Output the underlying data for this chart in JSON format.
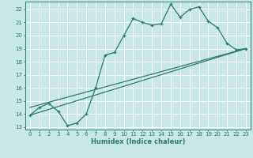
{
  "xlabel": "Humidex (Indice chaleur)",
  "bg_color": "#c8e8e8",
  "grid_color": "#ffffff",
  "line_color": "#2a7a6a",
  "xlim": [
    -0.5,
    23.5
  ],
  "ylim": [
    12.8,
    22.6
  ],
  "yticks": [
    13,
    14,
    15,
    16,
    17,
    18,
    19,
    20,
    21,
    22
  ],
  "xticks": [
    0,
    1,
    2,
    3,
    4,
    5,
    6,
    7,
    8,
    9,
    10,
    11,
    12,
    13,
    14,
    15,
    16,
    17,
    18,
    19,
    20,
    21,
    22,
    23
  ],
  "line1_x": [
    0,
    1,
    2,
    3,
    4,
    5,
    6,
    7,
    8,
    9,
    10,
    11,
    12,
    13,
    14,
    15,
    16,
    17,
    18,
    19,
    20,
    21,
    22,
    23
  ],
  "line1_y": [
    13.9,
    14.5,
    14.8,
    14.2,
    13.1,
    13.3,
    14.0,
    16.0,
    18.5,
    18.7,
    20.0,
    21.3,
    21.0,
    20.8,
    20.9,
    22.4,
    21.4,
    22.0,
    22.2,
    21.1,
    20.6,
    19.4,
    18.9,
    19.0
  ],
  "line2_x": [
    0,
    23
  ],
  "line2_y": [
    13.9,
    19.0
  ],
  "line3_x": [
    0,
    23
  ],
  "line3_y": [
    14.5,
    19.0
  ]
}
